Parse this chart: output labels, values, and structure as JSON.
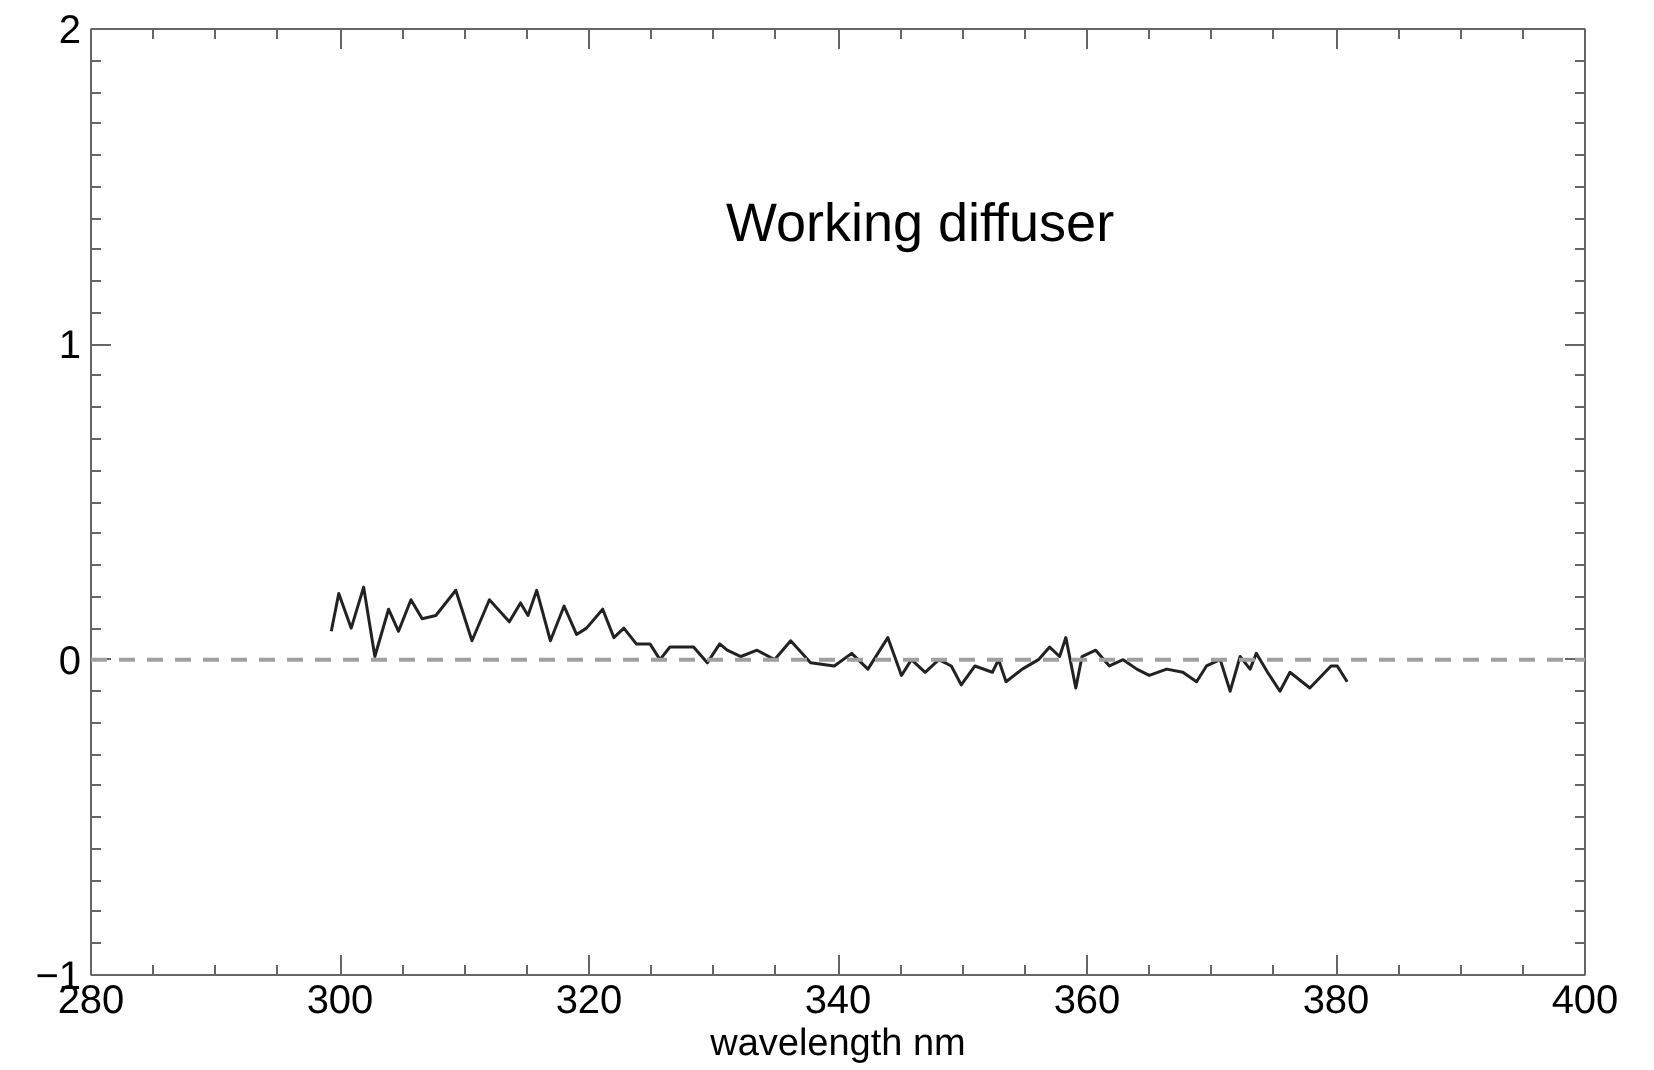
{
  "chart_data": {
    "type": "line",
    "xlabel": "wavelength nm",
    "annotations": [
      "Working diffuser"
    ],
    "xlim": [
      280,
      400
    ],
    "ylim": [
      -1,
      2
    ],
    "xticks": [
      280,
      300,
      320,
      340,
      360,
      380,
      400
    ],
    "yticks": [
      -1,
      0,
      1,
      2
    ],
    "grid": false,
    "line_style": "solid",
    "ref_lines": [
      {
        "axis": "y",
        "value": 0,
        "color": "#a0a0a0",
        "line_style": "dashed"
      }
    ],
    "series": [
      {
        "color": "#222222",
        "x": [
          299.3,
          299.9,
          300.9,
          301.9,
          302.8,
          303.9,
          304.7,
          305.7,
          306.6,
          307.7,
          309.3,
          310.6,
          312.0,
          313.6,
          314.5,
          315.1,
          315.8,
          316.9,
          318.0,
          319.0,
          319.8,
          321.1,
          322.0,
          322.8,
          323.8,
          324.9,
          325.7,
          326.5,
          328.4,
          329.5,
          330.5,
          331.1,
          332.2,
          333.5,
          334.9,
          336.2,
          337.8,
          339.7,
          341.1,
          342.4,
          344.0,
          345.1,
          345.9,
          347.0,
          348.1,
          349.1,
          349.9,
          351.0,
          352.4,
          352.9,
          353.5,
          354.8,
          356.1,
          357.0,
          357.8,
          358.3,
          359.1,
          359.6,
          360.7,
          361.8,
          362.9,
          364.0,
          365.0,
          366.4,
          367.7,
          368.8,
          369.6,
          370.7,
          371.5,
          372.3,
          373.1,
          373.6,
          374.5,
          375.5,
          376.3,
          377.9,
          379.6,
          380.1,
          380.9
        ],
        "values": [
          0.09,
          0.21,
          0.1,
          0.23,
          0.01,
          0.16,
          0.09,
          0.19,
          0.13,
          0.14,
          0.22,
          0.06,
          0.19,
          0.12,
          0.18,
          0.14,
          0.22,
          0.06,
          0.17,
          0.08,
          0.1,
          0.16,
          0.07,
          0.1,
          0.05,
          0.05,
          0.0,
          0.04,
          0.04,
          -0.01,
          0.05,
          0.03,
          0.01,
          0.03,
          0.0,
          0.06,
          -0.01,
          -0.02,
          0.02,
          -0.03,
          0.07,
          -0.05,
          0.0,
          -0.04,
          0.0,
          -0.02,
          -0.08,
          -0.02,
          -0.04,
          0.0,
          -0.07,
          -0.03,
          0.0,
          0.04,
          0.01,
          0.07,
          -0.09,
          0.01,
          0.03,
          -0.02,
          0.0,
          -0.03,
          -0.05,
          -0.03,
          -0.04,
          -0.07,
          -0.02,
          0.0,
          -0.1,
          0.01,
          -0.03,
          0.02,
          -0.04,
          -0.1,
          -0.04,
          -0.09,
          -0.02,
          -0.02,
          -0.07
        ]
      }
    ]
  }
}
